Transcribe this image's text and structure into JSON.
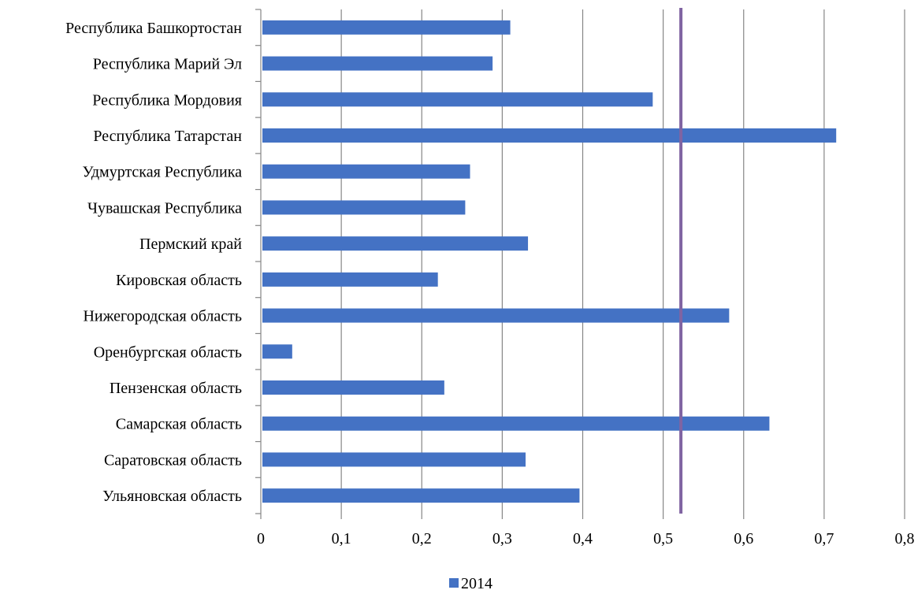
{
  "chart_data": {
    "type": "bar",
    "orientation": "horizontal",
    "categories": [
      "Республика Башкортостан",
      "Республика Марий Эл",
      "Республика Мордовия",
      "Республика Татарстан",
      "Удмуртская Республика",
      "Чувашская Республика",
      "Пермский край",
      "Кировская область",
      "Нижегородская область",
      "Оренбургская область",
      "Пензенская область",
      "Самарская область",
      "Саратовская область",
      "Ульяновская область"
    ],
    "series": [
      {
        "name": "2014",
        "color": "#4472c4",
        "values": [
          0.31,
          0.288,
          0.487,
          0.715,
          0.26,
          0.254,
          0.332,
          0.22,
          0.582,
          0.039,
          0.228,
          0.632,
          0.329,
          0.396
        ]
      }
    ],
    "reference_line": {
      "value": 0.522,
      "color": "#8064a2"
    },
    "xlim": [
      0,
      0.8
    ],
    "x_ticks": [
      "0",
      "0,1",
      "0,2",
      "0,3",
      "0,4",
      "0,5",
      "0,6",
      "0,7",
      "0,8"
    ],
    "grid": true,
    "legend": {
      "position": "bottom",
      "label": "2014"
    },
    "title": "",
    "xlabel": "",
    "ylabel": ""
  }
}
